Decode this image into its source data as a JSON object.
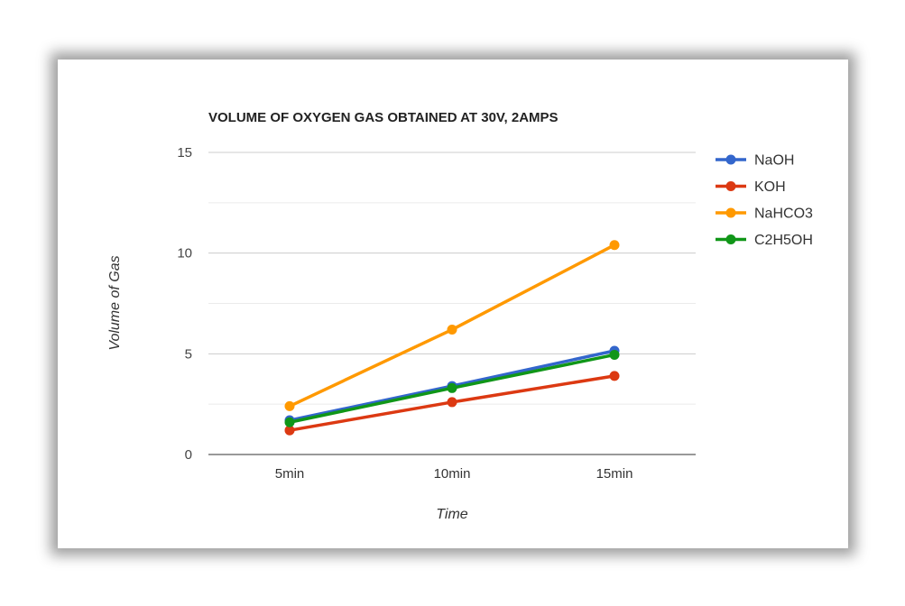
{
  "chart_data": {
    "type": "line",
    "title": "VOLUME OF OXYGEN GAS OBTAINED AT 30V, 2AMPS",
    "xlabel": "Time",
    "ylabel": "Volume of Gas",
    "categories": [
      "5min",
      "10min",
      "15min"
    ],
    "ylim": [
      0,
      15
    ],
    "yticks": [
      0,
      5,
      10,
      15
    ],
    "grid": true,
    "legend_position": "right",
    "series": [
      {
        "name": "NaOH",
        "color": "#3366cc",
        "values": [
          1.7,
          3.4,
          5.15
        ]
      },
      {
        "name": "KOH",
        "color": "#dc3912",
        "values": [
          1.2,
          2.6,
          3.9
        ]
      },
      {
        "name": "NaHCO3",
        "color": "#ff9900",
        "values": [
          2.4,
          6.2,
          10.4
        ]
      },
      {
        "name": "C2H5OH",
        "color": "#109618",
        "values": [
          1.6,
          3.3,
          4.95
        ]
      }
    ]
  }
}
